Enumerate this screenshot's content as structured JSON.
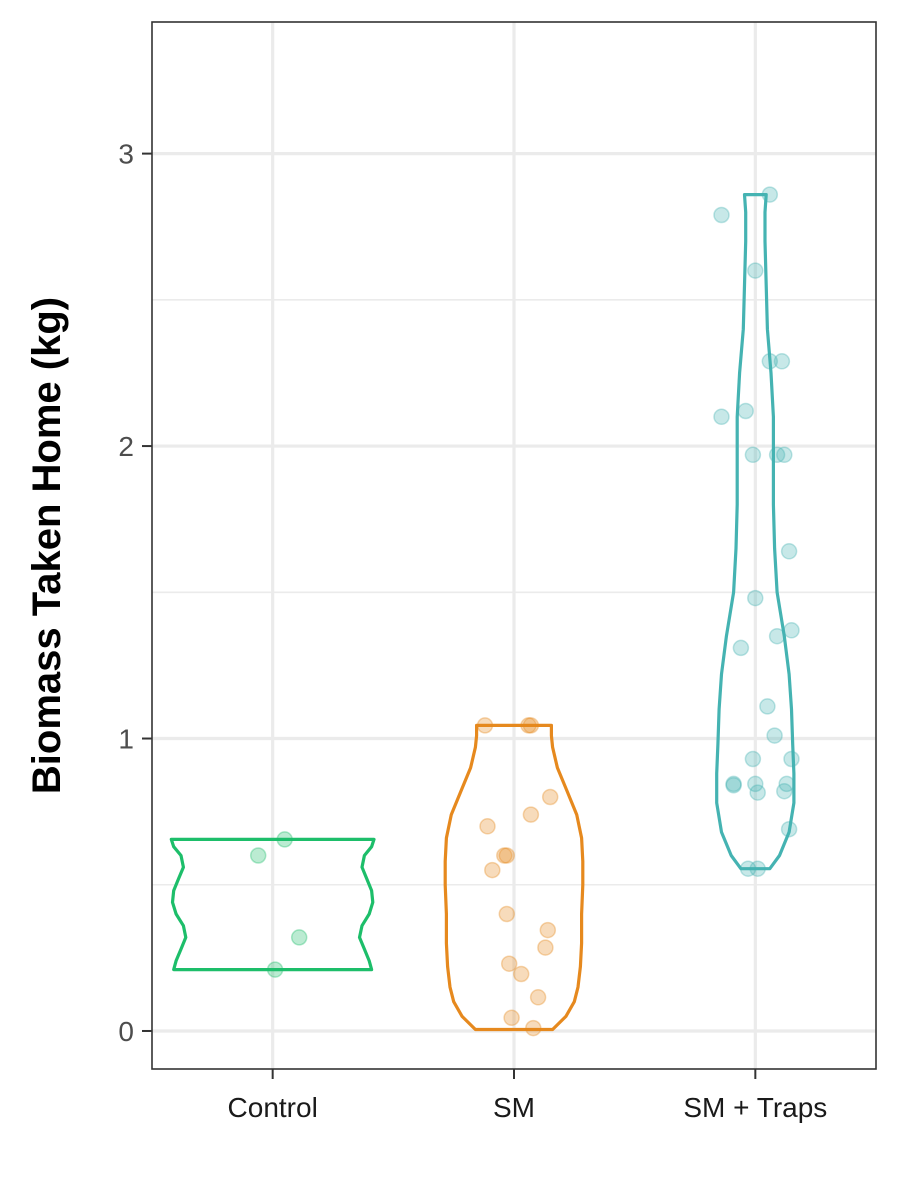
{
  "chart_data": {
    "type": "violin",
    "title": "",
    "xlabel": "",
    "ylabel": "Biomass Taken Home (kg)",
    "ylim": [
      -0.13,
      3.45
    ],
    "y_ticks": [
      0,
      1,
      2,
      3
    ],
    "y_tick_labels": [
      "0",
      "1",
      "2",
      "3"
    ],
    "grid": true,
    "legend": "none",
    "categories": [
      "Control",
      "SM",
      "SM + Traps"
    ],
    "series": [
      {
        "category": "Control",
        "color": "#1DBE6A",
        "range": [
          0.21,
          0.655
        ],
        "violin_profile": [
          [
            0.21,
            0.82
          ],
          [
            0.24,
            0.8
          ],
          [
            0.28,
            0.76
          ],
          [
            0.32,
            0.72
          ],
          [
            0.36,
            0.74
          ],
          [
            0.4,
            0.8
          ],
          [
            0.44,
            0.83
          ],
          [
            0.48,
            0.82
          ],
          [
            0.52,
            0.78
          ],
          [
            0.56,
            0.74
          ],
          [
            0.6,
            0.76
          ],
          [
            0.63,
            0.82
          ],
          [
            0.655,
            0.84
          ]
        ],
        "points": [
          {
            "offset": -0.06,
            "value": 0.6
          },
          {
            "offset": 0.05,
            "value": 0.655
          },
          {
            "offset": 0.11,
            "value": 0.32
          },
          {
            "offset": 0.01,
            "value": 0.21
          }
        ]
      },
      {
        "category": "SM",
        "color": "#E6891E",
        "range": [
          0.005,
          1.045
        ],
        "violin_profile": [
          [
            0.005,
            0.32
          ],
          [
            0.05,
            0.43
          ],
          [
            0.1,
            0.5
          ],
          [
            0.15,
            0.53
          ],
          [
            0.22,
            0.55
          ],
          [
            0.3,
            0.56
          ],
          [
            0.4,
            0.56
          ],
          [
            0.5,
            0.57
          ],
          [
            0.58,
            0.57
          ],
          [
            0.66,
            0.56
          ],
          [
            0.74,
            0.52
          ],
          [
            0.82,
            0.44
          ],
          [
            0.9,
            0.36
          ],
          [
            0.97,
            0.32
          ],
          [
            1.01,
            0.31
          ],
          [
            1.045,
            0.31
          ]
        ],
        "points": [
          {
            "offset": -0.12,
            "value": 1.045
          },
          {
            "offset": 0.06,
            "value": 1.045
          },
          {
            "offset": 0.07,
            "value": 1.045
          },
          {
            "offset": 0.15,
            "value": 0.8
          },
          {
            "offset": 0.07,
            "value": 0.74
          },
          {
            "offset": -0.11,
            "value": 0.7
          },
          {
            "offset": -0.03,
            "value": 0.6
          },
          {
            "offset": -0.04,
            "value": 0.6
          },
          {
            "offset": -0.09,
            "value": 0.55
          },
          {
            "offset": -0.03,
            "value": 0.4
          },
          {
            "offset": 0.14,
            "value": 0.345
          },
          {
            "offset": 0.13,
            "value": 0.285
          },
          {
            "offset": -0.02,
            "value": 0.23
          },
          {
            "offset": 0.03,
            "value": 0.195
          },
          {
            "offset": 0.1,
            "value": 0.115
          },
          {
            "offset": -0.01,
            "value": 0.045
          },
          {
            "offset": 0.08,
            "value": 0.01
          }
        ]
      },
      {
        "category": "SM + Traps",
        "color": "#45B3B2",
        "range": [
          0.555,
          2.86
        ],
        "violin_profile": [
          [
            0.555,
            0.12
          ],
          [
            0.6,
            0.2
          ],
          [
            0.68,
            0.28
          ],
          [
            0.78,
            0.32
          ],
          [
            0.88,
            0.32
          ],
          [
            0.98,
            0.31
          ],
          [
            1.1,
            0.3
          ],
          [
            1.22,
            0.28
          ],
          [
            1.35,
            0.24
          ],
          [
            1.5,
            0.18
          ],
          [
            1.65,
            0.16
          ],
          [
            1.8,
            0.15
          ],
          [
            1.95,
            0.15
          ],
          [
            2.1,
            0.15
          ],
          [
            2.25,
            0.13
          ],
          [
            2.4,
            0.1
          ],
          [
            2.55,
            0.09
          ],
          [
            2.7,
            0.08
          ],
          [
            2.8,
            0.08
          ],
          [
            2.86,
            0.09
          ]
        ],
        "points": [
          {
            "offset": 0.06,
            "value": 2.86
          },
          {
            "offset": -0.14,
            "value": 2.79
          },
          {
            "offset": 0.0,
            "value": 2.6
          },
          {
            "offset": 0.06,
            "value": 2.29
          },
          {
            "offset": 0.11,
            "value": 2.29
          },
          {
            "offset": -0.14,
            "value": 2.1
          },
          {
            "offset": -0.04,
            "value": 2.12
          },
          {
            "offset": -0.01,
            "value": 1.97
          },
          {
            "offset": 0.09,
            "value": 1.97
          },
          {
            "offset": 0.12,
            "value": 1.97
          },
          {
            "offset": 0.14,
            "value": 1.64
          },
          {
            "offset": 0.0,
            "value": 1.48
          },
          {
            "offset": 0.09,
            "value": 1.35
          },
          {
            "offset": 0.15,
            "value": 1.37
          },
          {
            "offset": -0.06,
            "value": 1.31
          },
          {
            "offset": 0.05,
            "value": 1.11
          },
          {
            "offset": 0.08,
            "value": 1.01
          },
          {
            "offset": -0.01,
            "value": 0.93
          },
          {
            "offset": 0.15,
            "value": 0.93
          },
          {
            "offset": -0.09,
            "value": 0.845
          },
          {
            "offset": 0.0,
            "value": 0.845
          },
          {
            "offset": -0.09,
            "value": 0.84
          },
          {
            "offset": 0.13,
            "value": 0.845
          },
          {
            "offset": 0.01,
            "value": 0.815
          },
          {
            "offset": 0.12,
            "value": 0.82
          },
          {
            "offset": 0.14,
            "value": 0.69
          },
          {
            "offset": -0.03,
            "value": 0.555
          },
          {
            "offset": 0.01,
            "value": 0.555
          }
        ]
      }
    ]
  }
}
